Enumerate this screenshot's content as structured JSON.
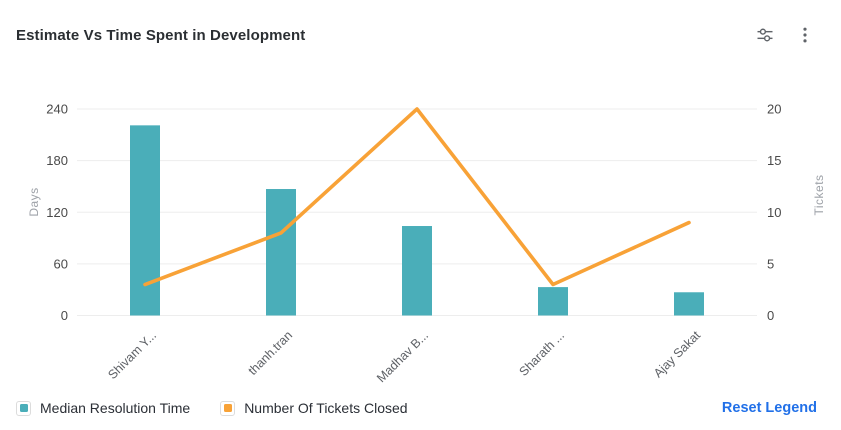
{
  "card": {
    "title": "Estimate Vs Time Spent in Development",
    "toolbar": {
      "icons": [
        "sliders-icon",
        "vertical-ellipsis-icon"
      ]
    }
  },
  "legend": {
    "items": [
      {
        "label": "Median Resolution Time",
        "color": "#4aaeb9"
      },
      {
        "label": "Number Of Tickets Closed",
        "color": "#f8a237"
      }
    ],
    "reset_label": "Reset Legend",
    "reset_color": "#2170e8"
  },
  "chart_data": {
    "type": "bar",
    "subtype": "combo-bar-line",
    "title": "Estimate Vs Time Spent in Development",
    "categories": [
      "Shivam Y...",
      "thanh.tran",
      "Madhav B...",
      "Sharath ...",
      "Ajay Sakat"
    ],
    "series": [
      {
        "name": "Median Resolution Time",
        "type": "bar",
        "yaxis": "left",
        "color": "#4aaeb9",
        "values": [
          221,
          147,
          104,
          33,
          27
        ]
      },
      {
        "name": "Number Of Tickets Closed",
        "type": "line",
        "yaxis": "right",
        "color": "#f8a237",
        "values": [
          3,
          8,
          20,
          3,
          9
        ]
      }
    ],
    "left_axis": {
      "label": "Days",
      "min": 0,
      "max": 240,
      "ticks": [
        0,
        60,
        120,
        180,
        240
      ]
    },
    "right_axis": {
      "label": "Tickets",
      "min": 0,
      "max": 20,
      "ticks": [
        0,
        5,
        10,
        15,
        20
      ]
    },
    "grid": true,
    "legend_position": "bottom",
    "x_label_rotation": -45
  },
  "colors": {
    "grid_line": "#ededed",
    "tick_text": "#4a4a4a",
    "axis_name_text": "#9ea2a8",
    "category_text": "#5e6166",
    "icon_gray": "#5f6368"
  }
}
